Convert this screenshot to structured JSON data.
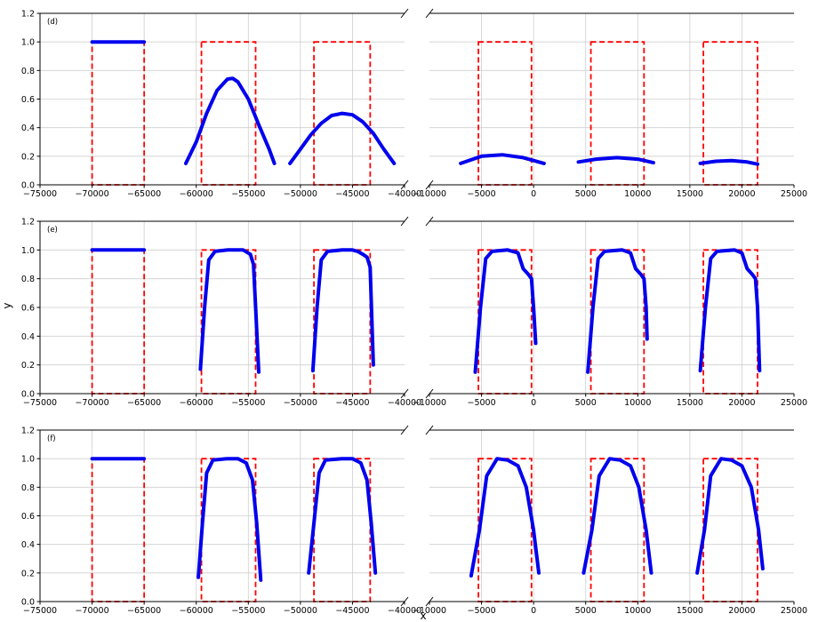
{
  "figure": {
    "xlabel": "x",
    "ylabel": "y"
  },
  "chart_data": [
    {
      "type": "line",
      "panel_label": "(d)",
      "left_xlim": [
        -75000,
        -40000
      ],
      "right_xlim": [
        -10000,
        25000
      ],
      "ylim": [
        0,
        1.2
      ],
      "left_xticks": [
        -75000,
        -70000,
        -65000,
        -60000,
        -55000,
        -50000,
        -45000,
        -40000
      ],
      "right_xticks": [
        -10000,
        -5000,
        0,
        5000,
        10000,
        15000,
        20000,
        25000
      ],
      "yticks": [
        0.0,
        0.2,
        0.4,
        0.6,
        0.8,
        1.0,
        1.2
      ],
      "grid": true,
      "reference_boxes": [
        [
          -70000,
          -65000
        ],
        [
          -59500,
          -54300
        ],
        [
          -48700,
          -43300
        ],
        [
          -5300,
          -200
        ],
        [
          5500,
          10600
        ],
        [
          16300,
          21500
        ]
      ],
      "series": [
        {
          "x": [
            -70000,
            -65000
          ],
          "y": [
            1.0,
            1.0
          ]
        },
        {
          "x": [
            -61000,
            -60000,
            -59000,
            -58000,
            -57000,
            -56500,
            -56000,
            -55000,
            -54000,
            -53000,
            -52500
          ],
          "y": [
            0.15,
            0.3,
            0.5,
            0.66,
            0.74,
            0.745,
            0.72,
            0.6,
            0.42,
            0.25,
            0.15
          ]
        },
        {
          "x": [
            -51000,
            -50000,
            -49000,
            -48000,
            -47000,
            -46000,
            -45000,
            -44000,
            -43000,
            -42000,
            -41000
          ],
          "y": [
            0.15,
            0.25,
            0.35,
            0.43,
            0.485,
            0.5,
            0.49,
            0.44,
            0.36,
            0.25,
            0.15
          ]
        },
        {
          "x": [
            -7000,
            -5000,
            -3000,
            -1000,
            1000
          ],
          "y": [
            0.15,
            0.2,
            0.21,
            0.19,
            0.15
          ]
        },
        {
          "x": [
            4300,
            6000,
            8000,
            10000,
            11500
          ],
          "y": [
            0.16,
            0.18,
            0.19,
            0.18,
            0.155
          ]
        },
        {
          "x": [
            16000,
            17500,
            19000,
            20500,
            21500
          ],
          "y": [
            0.15,
            0.165,
            0.17,
            0.16,
            0.145
          ]
        }
      ]
    },
    {
      "type": "line",
      "panel_label": "(e)",
      "left_xlim": [
        -75000,
        -40000
      ],
      "right_xlim": [
        -10000,
        25000
      ],
      "ylim": [
        0,
        1.2
      ],
      "left_xticks": [
        -75000,
        -70000,
        -65000,
        -60000,
        -55000,
        -50000,
        -45000,
        -40000
      ],
      "right_xticks": [
        -10000,
        -5000,
        0,
        5000,
        10000,
        15000,
        20000,
        25000
      ],
      "yticks": [
        0.0,
        0.2,
        0.4,
        0.6,
        0.8,
        1.0,
        1.2
      ],
      "grid": true,
      "reference_boxes": [
        [
          -70000,
          -65000
        ],
        [
          -59500,
          -54300
        ],
        [
          -48700,
          -43300
        ],
        [
          -5300,
          -200
        ],
        [
          5500,
          10600
        ],
        [
          16300,
          21500
        ]
      ],
      "series": [
        {
          "x": [
            -70000,
            -65000
          ],
          "y": [
            1.0,
            1.0
          ]
        },
        {
          "x": [
            -59600,
            -59200,
            -58800,
            -58200,
            -57000,
            -55500,
            -54800,
            -54500,
            -54300,
            -54000
          ],
          "y": [
            0.17,
            0.6,
            0.93,
            0.99,
            1.0,
            1.0,
            0.97,
            0.9,
            0.6,
            0.15
          ]
        },
        {
          "x": [
            -48800,
            -48400,
            -48000,
            -47400,
            -46000,
            -45000,
            -44500,
            -44000,
            -43600,
            -43300,
            -43000
          ],
          "y": [
            0.16,
            0.6,
            0.93,
            0.99,
            1.0,
            1.0,
            0.99,
            0.97,
            0.95,
            0.88,
            0.2
          ]
        },
        {
          "x": [
            -5600,
            -5100,
            -4600,
            -4000,
            -2500,
            -1500,
            -1000,
            -500,
            -200,
            0,
            200
          ],
          "y": [
            0.15,
            0.6,
            0.94,
            0.99,
            1.0,
            0.98,
            0.87,
            0.83,
            0.8,
            0.6,
            0.35
          ]
        },
        {
          "x": [
            5200,
            5700,
            6200,
            6800,
            8500,
            9300,
            9800,
            10300,
            10600,
            10800,
            10900
          ],
          "y": [
            0.15,
            0.6,
            0.94,
            0.99,
            1.0,
            0.98,
            0.87,
            0.83,
            0.8,
            0.6,
            0.38
          ]
        },
        {
          "x": [
            16000,
            16500,
            17000,
            17600,
            19300,
            20000,
            20500,
            21000,
            21300,
            21500,
            21700
          ],
          "y": [
            0.16,
            0.6,
            0.94,
            0.99,
            1.0,
            0.98,
            0.87,
            0.83,
            0.8,
            0.6,
            0.16
          ]
        }
      ]
    },
    {
      "type": "line",
      "panel_label": "(f)",
      "left_xlim": [
        -75000,
        -40000
      ],
      "right_xlim": [
        -10000,
        25000
      ],
      "ylim": [
        0,
        1.2
      ],
      "left_xticks": [
        -75000,
        -70000,
        -65000,
        -60000,
        -55000,
        -50000,
        -45000,
        -40000
      ],
      "right_xticks": [
        -10000,
        -5000,
        0,
        5000,
        10000,
        15000,
        20000,
        25000
      ],
      "yticks": [
        0.0,
        0.2,
        0.4,
        0.6,
        0.8,
        1.0,
        1.2
      ],
      "grid": true,
      "reference_boxes": [
        [
          -70000,
          -65000
        ],
        [
          -59500,
          -54300
        ],
        [
          -48700,
          -43300
        ],
        [
          -5300,
          -200
        ],
        [
          5500,
          10600
        ],
        [
          16300,
          21500
        ]
      ],
      "series": [
        {
          "x": [
            -70000,
            -65000
          ],
          "y": [
            1.0,
            1.0
          ]
        },
        {
          "x": [
            -59800,
            -59400,
            -59000,
            -58400,
            -57000,
            -56000,
            -55200,
            -54600,
            -54200,
            -53800
          ],
          "y": [
            0.17,
            0.55,
            0.9,
            0.99,
            1.0,
            1.0,
            0.97,
            0.85,
            0.55,
            0.15
          ]
        },
        {
          "x": [
            -49200,
            -48700,
            -48200,
            -47600,
            -46000,
            -45000,
            -44200,
            -43600,
            -43200,
            -42800
          ],
          "y": [
            0.2,
            0.55,
            0.9,
            0.99,
            1.0,
            1.0,
            0.97,
            0.85,
            0.55,
            0.2
          ]
        },
        {
          "x": [
            -6000,
            -5200,
            -4500,
            -3500,
            -2500,
            -1500,
            -700,
            0,
            500
          ],
          "y": [
            0.18,
            0.5,
            0.88,
            1.0,
            0.99,
            0.95,
            0.8,
            0.5,
            0.2
          ]
        },
        {
          "x": [
            4800,
            5600,
            6300,
            7300,
            8300,
            9300,
            10100,
            10800,
            11300
          ],
          "y": [
            0.2,
            0.5,
            0.88,
            1.0,
            0.99,
            0.95,
            0.8,
            0.5,
            0.2
          ]
        },
        {
          "x": [
            15700,
            16400,
            17000,
            18000,
            19000,
            20000,
            20900,
            21600,
            22000
          ],
          "y": [
            0.2,
            0.5,
            0.88,
            1.0,
            0.99,
            0.95,
            0.8,
            0.5,
            0.23
          ]
        }
      ]
    }
  ]
}
